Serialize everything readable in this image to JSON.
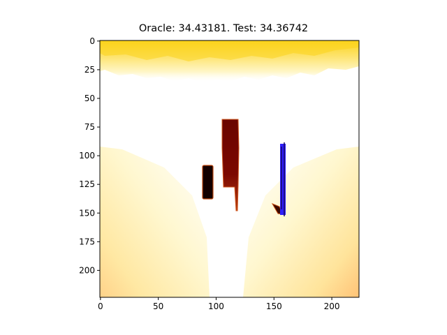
{
  "chart_data": {
    "type": "heatmap",
    "title": "Oracle: 34.43181. Test: 34.36742",
    "xlabel": "",
    "ylabel": "",
    "xlim": [
      0,
      223
    ],
    "ylim": [
      223,
      0
    ],
    "x_ticks": [
      0,
      50,
      100,
      150,
      200
    ],
    "y_ticks": [
      0,
      25,
      50,
      75,
      100,
      125,
      150,
      175,
      200
    ],
    "grid": false,
    "colormap": "afmhot (inverted, white = high)",
    "colors": {
      "sky_band": "#fbd31c",
      "background": "#ffffff",
      "ground_side": "#ffd37c",
      "object_dark": "#140000",
      "object_red": "#7c0800",
      "overlay_blue": "#2f1fff"
    },
    "regions": [
      {
        "name": "sky-band",
        "x": [
          0,
          223
        ],
        "y": [
          0,
          38
        ]
      },
      {
        "name": "ground-left-gradient",
        "x": [
          0,
          95
        ],
        "y": [
          92,
          223
        ]
      },
      {
        "name": "ground-right-gradient",
        "x": [
          125,
          223
        ],
        "y": [
          92,
          223
        ]
      },
      {
        "name": "object-dark-left",
        "x": [
          89,
          98
        ],
        "y": [
          108,
          138
        ]
      },
      {
        "name": "object-red-center",
        "x": [
          104,
          120
        ],
        "y": [
          68,
          148
        ]
      },
      {
        "name": "object-blue-right",
        "x": [
          148,
          163
        ],
        "y": [
          88,
          154
        ]
      }
    ]
  }
}
